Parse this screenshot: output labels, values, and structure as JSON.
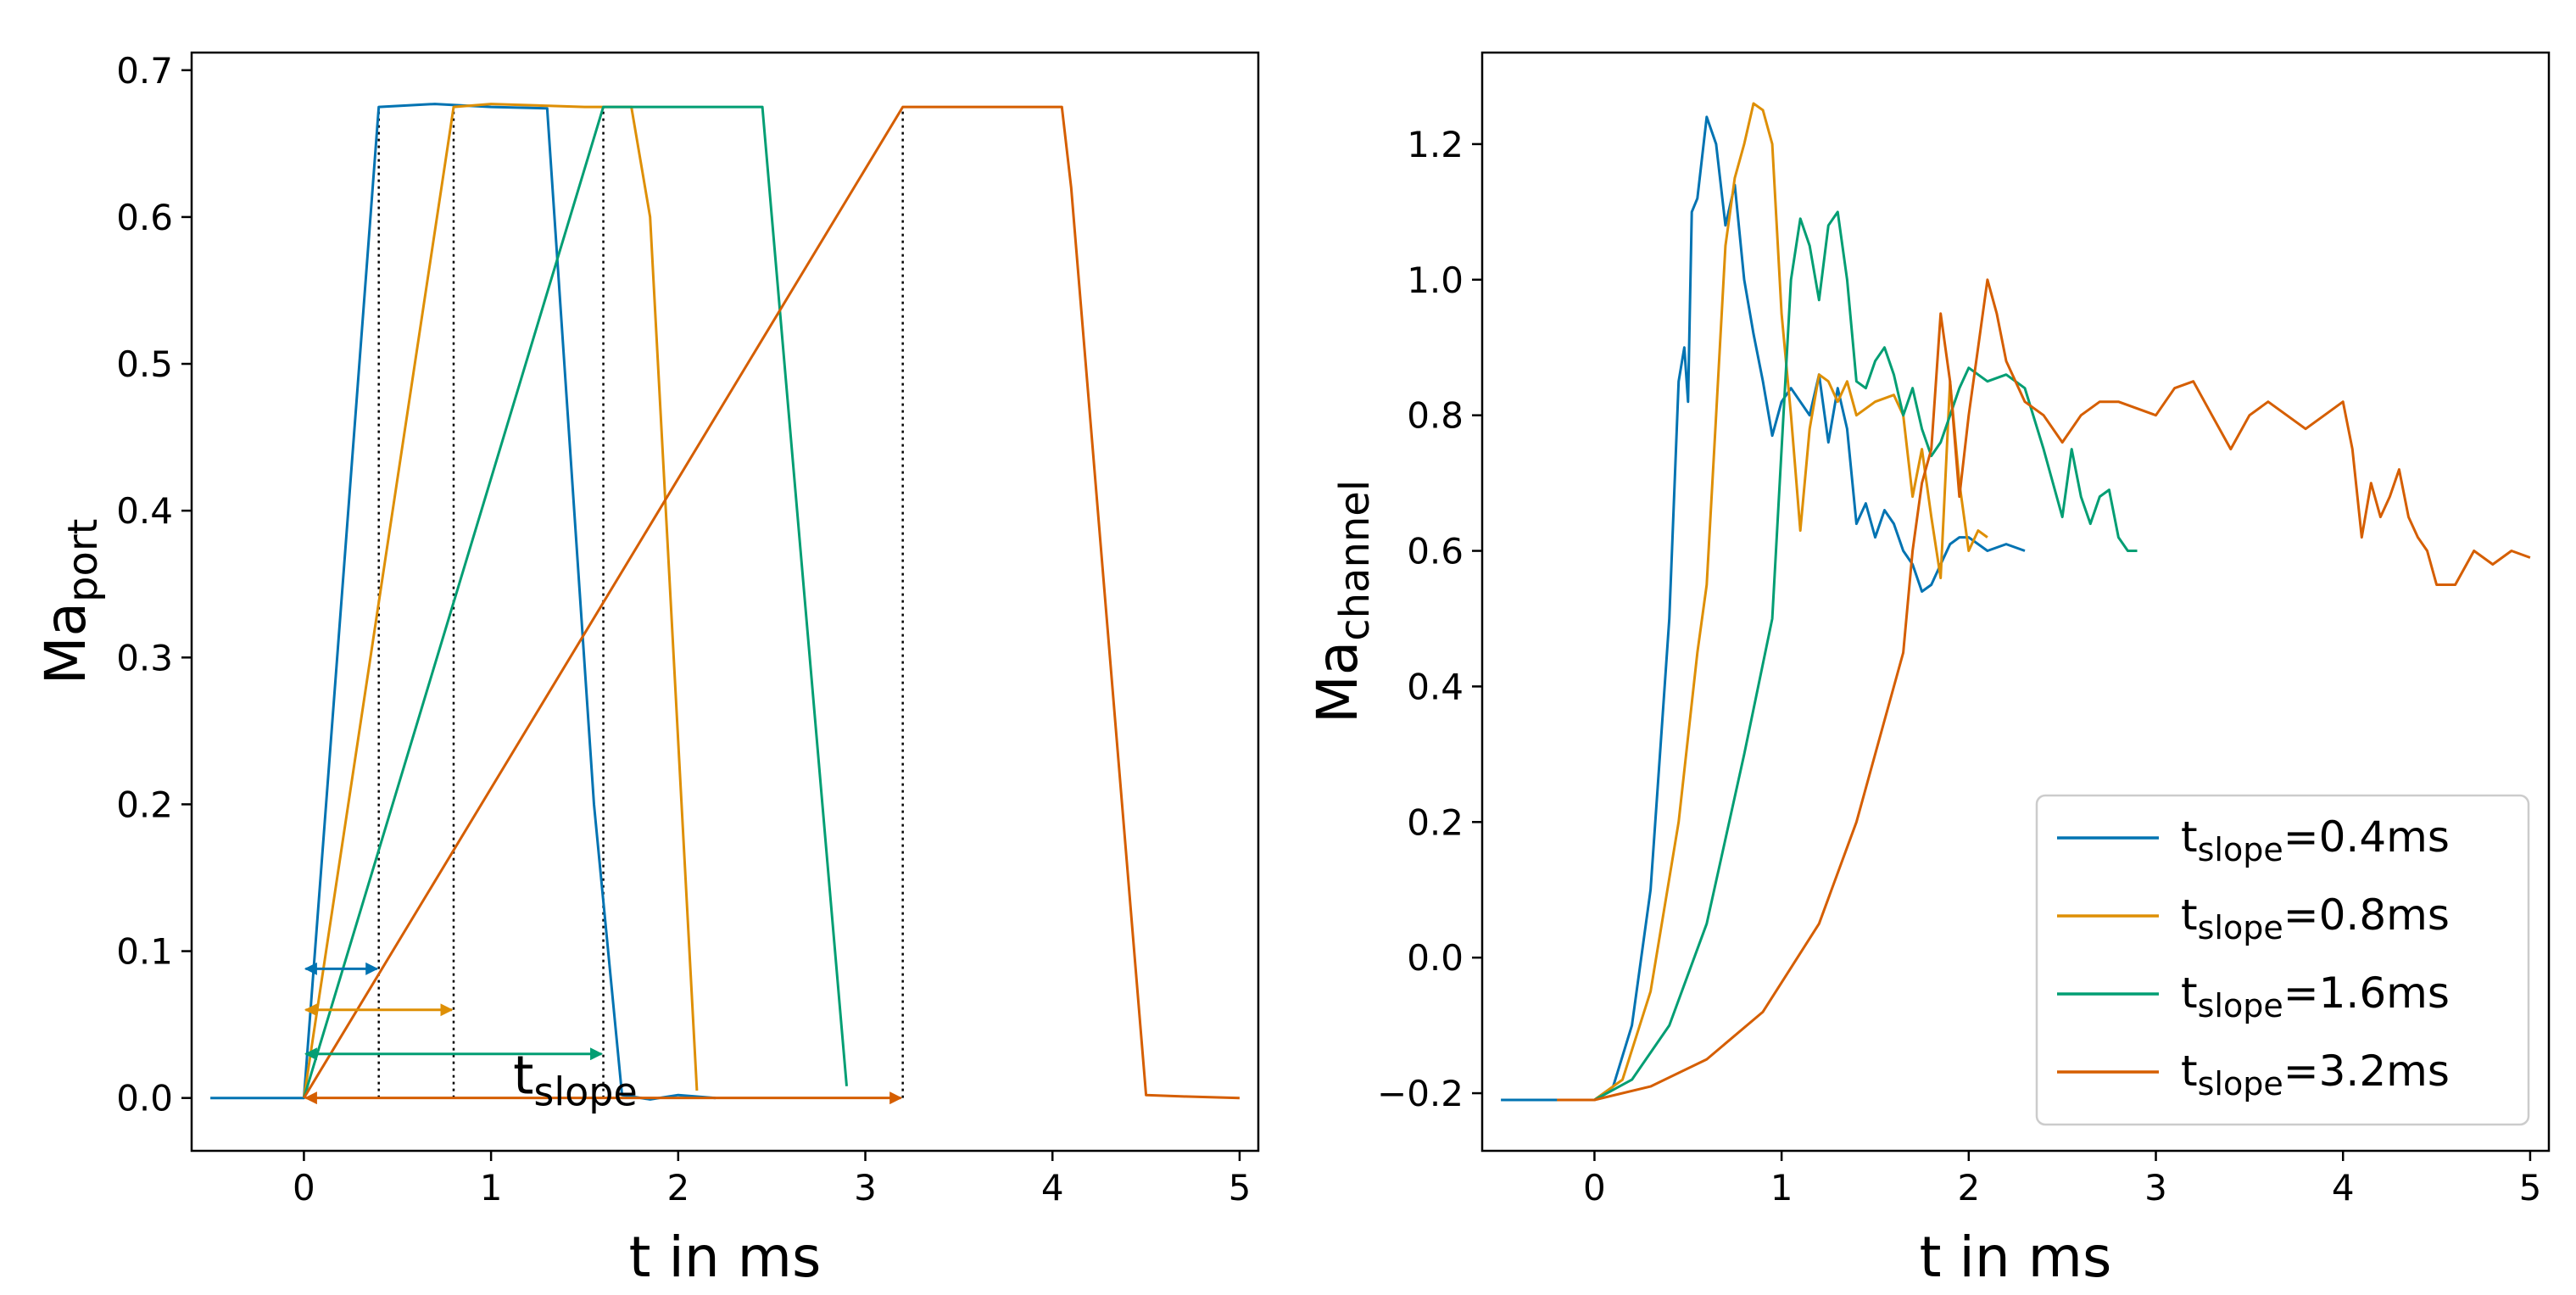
{
  "colors": {
    "blue": "#0173b2",
    "orange": "#de8f05",
    "green": "#029e73",
    "vermilion": "#d55e00"
  },
  "chart_data": [
    {
      "type": "line",
      "panel": "left",
      "xlabel": "t in ms",
      "ylabel_base": "Ma",
      "ylabel_sub": "port",
      "xlim": [
        -0.6,
        5.1
      ],
      "ylim": [
        -0.036,
        0.712
      ],
      "xticks": [
        0,
        1,
        2,
        3,
        4,
        5
      ],
      "yticks": [
        0.0,
        0.1,
        0.2,
        0.3,
        0.4,
        0.5,
        0.6,
        0.7
      ],
      "xtick_labels": [
        "0",
        "1",
        "2",
        "3",
        "4",
        "5"
      ],
      "ytick_labels": [
        "0.0",
        "0.1",
        "0.2",
        "0.3",
        "0.4",
        "0.5",
        "0.6",
        "0.7"
      ],
      "annotation_base": "t",
      "annotation_sub": "slope",
      "annotation_at": [
        1.45,
        0.003
      ],
      "series": [
        {
          "name": "t_slope=0.4ms",
          "color": "#0173b2",
          "x": [
            -0.5,
            0.0,
            0.4,
            0.7,
            1.0,
            1.3,
            1.55,
            1.7,
            1.85,
            2.0,
            2.2
          ],
          "y": [
            0.0,
            0.0,
            0.675,
            0.677,
            0.675,
            0.674,
            0.2,
            0.002,
            -0.001,
            0.002,
            0.0
          ]
        },
        {
          "name": "t_slope=0.8ms",
          "color": "#de8f05",
          "x": [
            0.0,
            0.8,
            1.0,
            1.5,
            1.75,
            1.85,
            2.1
          ],
          "y": [
            0.0,
            0.675,
            0.677,
            0.675,
            0.675,
            0.6,
            0.005
          ]
        },
        {
          "name": "t_slope=1.6ms",
          "color": "#029e73",
          "x": [
            0.0,
            1.6,
            2.0,
            2.45,
            2.9
          ],
          "y": [
            0.0,
            0.675,
            0.675,
            0.675,
            0.008
          ]
        },
        {
          "name": "t_slope=3.2ms",
          "color": "#d55e00",
          "x": [
            0.0,
            3.2,
            3.6,
            4.05,
            4.1,
            4.5,
            4.7,
            5.0
          ],
          "y": [
            0.0,
            0.675,
            0.675,
            0.675,
            0.62,
            0.002,
            0.001,
            0.0
          ]
        }
      ],
      "dotted_lines_x": [
        0.4,
        0.8,
        1.6,
        3.2
      ],
      "arrows": [
        {
          "series": "t_slope=0.4ms",
          "color": "#0173b2",
          "x0": 0.0,
          "x1": 0.4,
          "y": 0.088
        },
        {
          "series": "t_slope=0.8ms",
          "color": "#de8f05",
          "x0": 0.0,
          "x1": 0.8,
          "y": 0.06
        },
        {
          "series": "t_slope=1.6ms",
          "color": "#029e73",
          "x0": 0.0,
          "x1": 1.6,
          "y": 0.03
        },
        {
          "series": "t_slope=3.2ms",
          "color": "#d55e00",
          "x0": 0.0,
          "x1": 3.2,
          "y": 0.0
        }
      ]
    },
    {
      "type": "line",
      "panel": "right",
      "xlabel": "t in ms",
      "ylabel_base": "Ma",
      "ylabel_sub": "channel",
      "xlim": [
        -0.6,
        5.1
      ],
      "ylim": [
        -0.285,
        1.335
      ],
      "xticks": [
        0,
        1,
        2,
        3,
        4,
        5
      ],
      "yticks": [
        -0.2,
        0.0,
        0.2,
        0.4,
        0.6,
        0.8,
        1.0,
        1.2
      ],
      "xtick_labels": [
        "0",
        "1",
        "2",
        "3",
        "4",
        "5"
      ],
      "ytick_labels": [
        "−0.2",
        "0.0",
        "0.2",
        "0.4",
        "0.6",
        "0.8",
        "1.0",
        "1.2"
      ],
      "legend_position": "lower-right",
      "series": [
        {
          "name": "t_slope=0.4ms",
          "color": "#0173b2",
          "x": [
            -0.5,
            -0.3,
            0.0,
            0.1,
            0.2,
            0.3,
            0.35,
            0.4,
            0.45,
            0.48,
            0.5,
            0.52,
            0.55,
            0.6,
            0.65,
            0.7,
            0.75,
            0.8,
            0.85,
            0.9,
            0.95,
            1.0,
            1.05,
            1.1,
            1.15,
            1.2,
            1.25,
            1.3,
            1.35,
            1.4,
            1.45,
            1.5,
            1.55,
            1.6,
            1.65,
            1.7,
            1.75,
            1.8,
            1.85,
            1.9,
            1.95,
            2.0,
            2.1,
            2.2,
            2.3
          ],
          "y": [
            -0.21,
            -0.21,
            -0.21,
            -0.19,
            -0.1,
            0.1,
            0.3,
            0.5,
            0.85,
            0.9,
            0.82,
            1.1,
            1.12,
            1.24,
            1.2,
            1.08,
            1.14,
            1.0,
            0.92,
            0.85,
            0.77,
            0.82,
            0.84,
            0.82,
            0.8,
            0.86,
            0.76,
            0.84,
            0.78,
            0.64,
            0.67,
            0.62,
            0.66,
            0.64,
            0.6,
            0.58,
            0.54,
            0.55,
            0.58,
            0.61,
            0.62,
            0.62,
            0.6,
            0.61,
            0.6
          ]
        },
        {
          "name": "t_slope=0.8ms",
          "color": "#de8f05",
          "x": [
            -0.2,
            0.0,
            0.15,
            0.3,
            0.45,
            0.55,
            0.6,
            0.65,
            0.7,
            0.75,
            0.8,
            0.85,
            0.9,
            0.95,
            1.0,
            1.05,
            1.1,
            1.15,
            1.2,
            1.25,
            1.3,
            1.35,
            1.4,
            1.5,
            1.6,
            1.65,
            1.7,
            1.75,
            1.8,
            1.85,
            1.9,
            1.95,
            2.0,
            2.05,
            2.1
          ],
          "y": [
            -0.21,
            -0.21,
            -0.18,
            -0.05,
            0.2,
            0.45,
            0.55,
            0.8,
            1.05,
            1.15,
            1.2,
            1.26,
            1.25,
            1.2,
            0.95,
            0.8,
            0.63,
            0.78,
            0.86,
            0.85,
            0.82,
            0.85,
            0.8,
            0.82,
            0.83,
            0.8,
            0.68,
            0.75,
            0.65,
            0.56,
            0.85,
            0.7,
            0.6,
            0.63,
            0.62
          ]
        },
        {
          "name": "t_slope=1.6ms",
          "color": "#029e73",
          "x": [
            -0.2,
            0.0,
            0.2,
            0.4,
            0.6,
            0.8,
            0.95,
            1.0,
            1.05,
            1.1,
            1.15,
            1.2,
            1.25,
            1.3,
            1.35,
            1.4,
            1.45,
            1.5,
            1.55,
            1.6,
            1.65,
            1.7,
            1.75,
            1.8,
            1.85,
            1.9,
            1.95,
            2.0,
            2.1,
            2.2,
            2.3,
            2.4,
            2.5,
            2.55,
            2.6,
            2.65,
            2.7,
            2.75,
            2.8,
            2.85,
            2.9
          ],
          "y": [
            -0.21,
            -0.21,
            -0.18,
            -0.1,
            0.05,
            0.3,
            0.5,
            0.75,
            1.0,
            1.09,
            1.05,
            0.97,
            1.08,
            1.1,
            1.0,
            0.85,
            0.84,
            0.88,
            0.9,
            0.86,
            0.8,
            0.84,
            0.78,
            0.74,
            0.76,
            0.8,
            0.84,
            0.87,
            0.85,
            0.86,
            0.84,
            0.75,
            0.65,
            0.75,
            0.68,
            0.64,
            0.68,
            0.69,
            0.62,
            0.6,
            0.6
          ]
        },
        {
          "name": "t_slope=3.2ms",
          "color": "#d55e00",
          "x": [
            -0.2,
            0.0,
            0.3,
            0.6,
            0.9,
            1.2,
            1.4,
            1.55,
            1.65,
            1.7,
            1.75,
            1.8,
            1.85,
            1.9,
            1.95,
            2.0,
            2.05,
            2.1,
            2.15,
            2.2,
            2.3,
            2.4,
            2.5,
            2.6,
            2.7,
            2.8,
            2.9,
            3.0,
            3.1,
            3.2,
            3.3,
            3.4,
            3.5,
            3.6,
            3.7,
            3.8,
            3.9,
            4.0,
            4.05,
            4.1,
            4.15,
            4.2,
            4.25,
            4.3,
            4.35,
            4.4,
            4.45,
            4.5,
            4.6,
            4.7,
            4.8,
            4.9,
            5.0
          ],
          "y": [
            -0.21,
            -0.21,
            -0.19,
            -0.15,
            -0.08,
            0.05,
            0.2,
            0.35,
            0.45,
            0.6,
            0.7,
            0.75,
            0.95,
            0.85,
            0.68,
            0.8,
            0.9,
            1.0,
            0.95,
            0.88,
            0.82,
            0.8,
            0.76,
            0.8,
            0.82,
            0.82,
            0.81,
            0.8,
            0.84,
            0.85,
            0.8,
            0.75,
            0.8,
            0.82,
            0.8,
            0.78,
            0.8,
            0.82,
            0.75,
            0.62,
            0.7,
            0.65,
            0.68,
            0.72,
            0.65,
            0.62,
            0.6,
            0.55,
            0.55,
            0.6,
            0.58,
            0.6,
            0.59
          ]
        }
      ],
      "legend": [
        {
          "base": "t",
          "sub": "slope",
          "value": "=0.4ms",
          "color": "#0173b2"
        },
        {
          "base": "t",
          "sub": "slope",
          "value": "=0.8ms",
          "color": "#de8f05"
        },
        {
          "base": "t",
          "sub": "slope",
          "value": "=1.6ms",
          "color": "#029e73"
        },
        {
          "base": "t",
          "sub": "slope",
          "value": "=3.2ms",
          "color": "#d55e00"
        }
      ]
    }
  ]
}
